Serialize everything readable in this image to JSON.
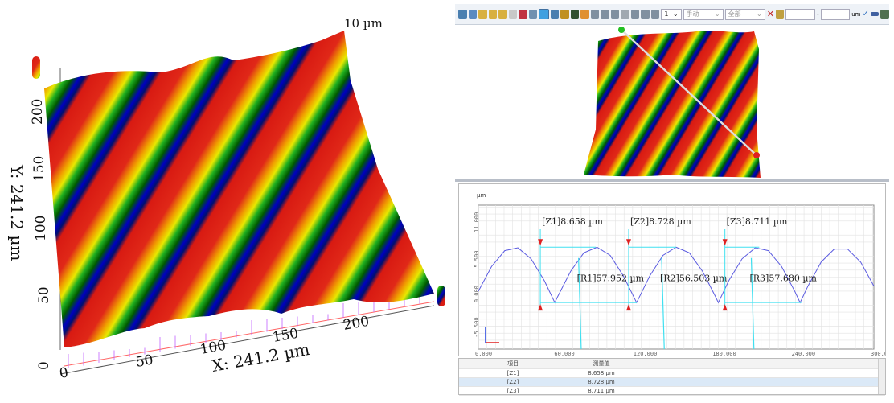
{
  "surface_3d": {
    "z_label": "10 µm",
    "x_axis_title": "X: 241.2 µm",
    "y_axis_title": "Y: 241.2 µm",
    "x_ticks": [
      "0",
      "50",
      "100",
      "150",
      "200"
    ],
    "y_ticks": [
      "0",
      "50",
      "100",
      "150",
      "200"
    ],
    "colormap": [
      "#d01010",
      "#e83010",
      "#f0a000",
      "#f0f000",
      "#20c020",
      "#006000",
      "#0000c0",
      "#000060"
    ]
  },
  "toolbar": {
    "layer_select": "1",
    "mode_select": "手动",
    "range_select": "全部",
    "unit": "um"
  },
  "chart_data": {
    "type": "line",
    "ylabel": "µm",
    "xlim": [
      0,
      300
    ],
    "ylim": [
      -7.3,
      15.3
    ],
    "x_ticks": [
      "0.000",
      "60.000",
      "120.000",
      "180.000",
      "240.000",
      "300.000"
    ],
    "y_ticks": [
      {
        "v": 11,
        "label": "11.000"
      },
      {
        "v": 5.5,
        "label": "5.500"
      },
      {
        "v": 0,
        "label": "0.000"
      },
      {
        "v": -5.5,
        "label": "-5.500"
      }
    ],
    "grid": true,
    "x": [
      0,
      10,
      20,
      30,
      40,
      50,
      58,
      60,
      70,
      80,
      90,
      100,
      110,
      120,
      130,
      140,
      150,
      160,
      170,
      180,
      182,
      190,
      200,
      210,
      220,
      230,
      240,
      244,
      250,
      260,
      270,
      280,
      290,
      300
    ],
    "y": [
      1.77,
      5.66,
      8.15,
      8.6,
      6.87,
      3.46,
      0,
      0.88,
      4.92,
      7.81,
      8.69,
      7.41,
      4.19,
      0,
      4.19,
      7.41,
      8.69,
      7.81,
      4.92,
      0.88,
      0,
      3.46,
      6.87,
      8.6,
      8.15,
      5.66,
      1.77,
      0,
      2.6,
      6.37,
      8.42,
      8.41,
      6.35,
      2.6
    ],
    "line_color": "#5a5ae0",
    "annotations": [
      {
        "label": "[Z1]8.658 µm",
        "x": 47,
        "peak_x": 89,
        "valley_x": 58,
        "r_label": "[R1]57.952 µm",
        "r_x": 76
      },
      {
        "label": "[Z2]8.728 µm",
        "x": 114,
        "peak_x": 150,
        "valley_x": 120,
        "r_label": "[R2]56.503 µm",
        "r_x": 139
      },
      {
        "label": "[Z3]8.711 µm",
        "x": 187,
        "peak_x": 213,
        "valley_x": 182,
        "r_label": "[R3]57.680 µm",
        "r_x": 207
      }
    ]
  },
  "table": {
    "headers": [
      "項目",
      "測量值"
    ],
    "rows": [
      [
        "[Z1]",
        "8.658 µm"
      ],
      [
        "[Z2]",
        "8.728 µm"
      ],
      [
        "[Z3]",
        "8.711 µm"
      ]
    ]
  }
}
